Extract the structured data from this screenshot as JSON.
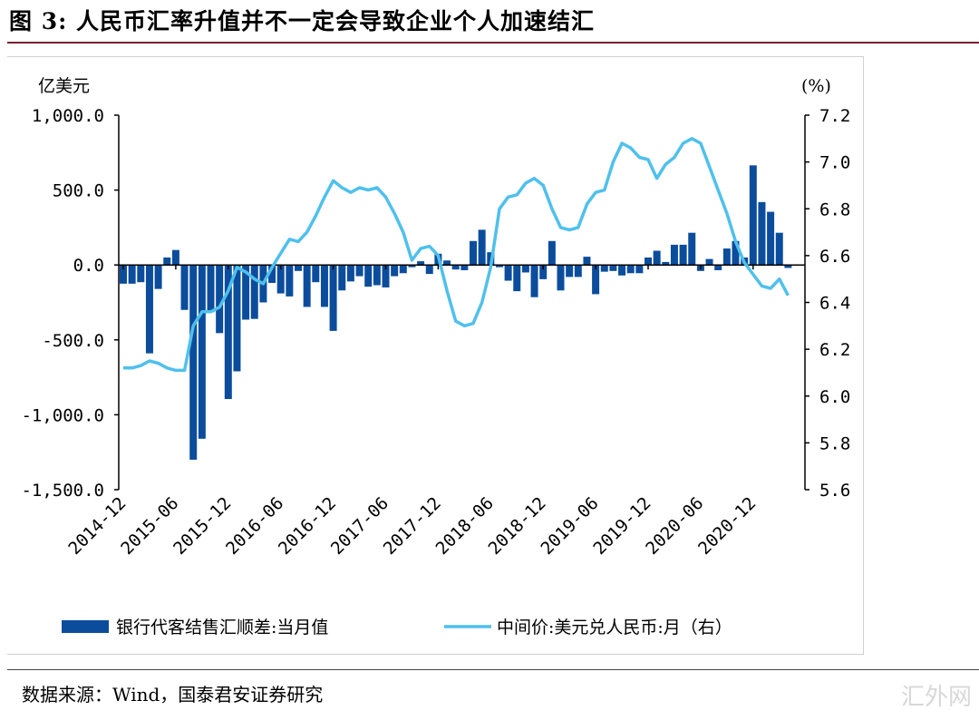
{
  "title": "图 3:  人民币汇率升值并不一定会导致企业个人加速结汇",
  "source": "数据来源：Wind，国泰君安证券研究",
  "watermark": "汇外网",
  "chart_data": {
    "type": "bar+line",
    "left_unit": "亿美元",
    "right_unit": "(%)",
    "left_ylim": [
      -1500,
      1000
    ],
    "left_ticks": [
      "1,000.0",
      "500.0",
      "0.0",
      "-500.0",
      "-1,000.0",
      "-1,500.0"
    ],
    "left_tick_values": [
      1000,
      500,
      0,
      -500,
      -1000,
      -1500
    ],
    "right_ylim": [
      5.6,
      7.2
    ],
    "right_ticks": [
      "7.2",
      "7.0",
      "6.8",
      "6.6",
      "6.4",
      "6.2",
      "6.0",
      "5.8",
      "5.6"
    ],
    "right_tick_values": [
      7.2,
      7.0,
      6.8,
      6.6,
      6.4,
      6.2,
      6.0,
      5.8,
      5.6
    ],
    "start_month": "2014-12",
    "x_tick_labels": [
      "2014-12",
      "2015-06",
      "2015-12",
      "2016-06",
      "2016-12",
      "2017-06",
      "2017-12",
      "2018-06",
      "2018-12",
      "2019-06",
      "2019-12",
      "2020-06",
      "2020-12"
    ],
    "legend_position": "bottom",
    "series": [
      {
        "name": "银行代客结售汇顺差:当月值",
        "type": "bar",
        "axis": "left",
        "color": "#0b4d9c",
        "values": [
          -125,
          -125,
          -115,
          -590,
          -160,
          50,
          100,
          -300,
          -1300,
          -1160,
          -315,
          -455,
          -895,
          -710,
          -365,
          -360,
          -250,
          -120,
          -190,
          -210,
          -40,
          -280,
          -115,
          -280,
          -440,
          -170,
          -110,
          -75,
          -145,
          -135,
          -150,
          -75,
          -55,
          -15,
          25,
          -60,
          75,
          30,
          -30,
          -35,
          160,
          235,
          85,
          -15,
          -105,
          -175,
          -50,
          -215,
          -95,
          160,
          -170,
          -80,
          -80,
          55,
          -195,
          -45,
          -40,
          -70,
          -55,
          -55,
          50,
          95,
          20,
          135,
          135,
          215,
          -40,
          40,
          -35,
          110,
          160,
          50,
          665,
          420,
          355,
          215,
          -20
        ]
      },
      {
        "name": "中间价:美元兑人民币:月（右）",
        "type": "line",
        "axis": "right",
        "color": "#4fc0ec",
        "values": [
          6.12,
          6.12,
          6.13,
          6.15,
          6.14,
          6.12,
          6.11,
          6.11,
          6.3,
          6.36,
          6.36,
          6.38,
          6.45,
          6.55,
          6.53,
          6.5,
          6.48,
          6.55,
          6.61,
          6.67,
          6.66,
          6.7,
          6.77,
          6.85,
          6.92,
          6.89,
          6.87,
          6.89,
          6.88,
          6.89,
          6.85,
          6.78,
          6.7,
          6.58,
          6.63,
          6.64,
          6.6,
          6.45,
          6.32,
          6.3,
          6.31,
          6.4,
          6.55,
          6.8,
          6.85,
          6.86,
          6.91,
          6.93,
          6.9,
          6.8,
          6.72,
          6.71,
          6.72,
          6.82,
          6.87,
          6.88,
          7.0,
          7.08,
          7.06,
          7.02,
          7.01,
          6.93,
          6.99,
          7.02,
          7.08,
          7.1,
          7.08,
          6.98,
          6.88,
          6.78,
          6.66,
          6.57,
          6.52,
          6.47,
          6.46,
          6.5,
          6.43
        ]
      }
    ]
  }
}
